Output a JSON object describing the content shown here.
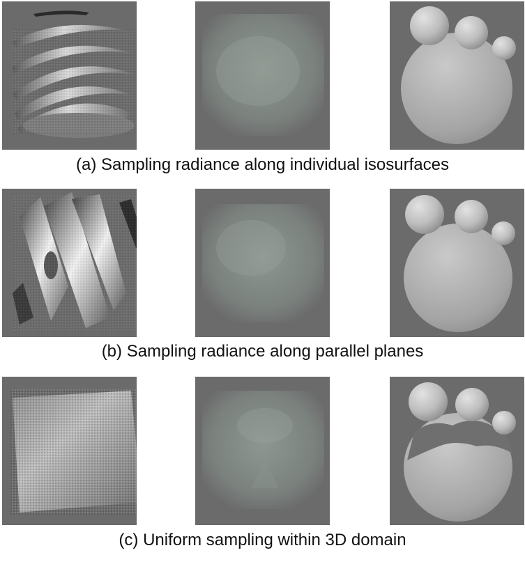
{
  "colors": {
    "background": "#6b6b6b",
    "caption": "#111111",
    "page": "#ffffff"
  },
  "rows": [
    {
      "caption": "(a) Sampling radiance along individual isosurfaces"
    },
    {
      "caption": "(b) Sampling radiance along parallel planes"
    },
    {
      "caption": "(c) Uniform sampling within 3D domain"
    }
  ]
}
